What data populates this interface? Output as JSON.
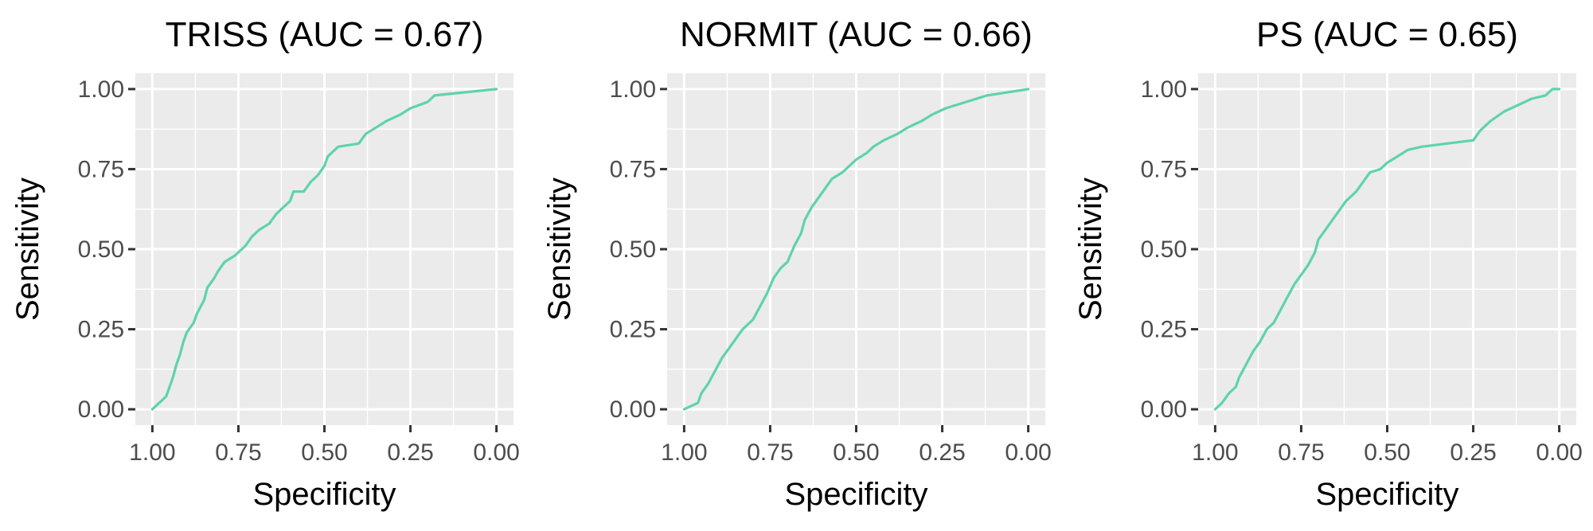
{
  "colors": {
    "line": "#5fd3ab",
    "panel": "#ebebeb",
    "grid": "#ffffff",
    "tick_text": "#4d4d4d"
  },
  "chart_data": [
    {
      "type": "line",
      "title": "TRISS (AUC = 0.67)",
      "xlabel": "Specificity",
      "ylabel": "Sensitivity",
      "xlim": [
        1.0,
        0.0
      ],
      "ylim": [
        0.0,
        1.0
      ],
      "x_reversed": true,
      "grid": true,
      "xticks": [
        "1.00",
        "0.75",
        "0.50",
        "0.25",
        "0.00"
      ],
      "yticks": [
        "0.00",
        "0.25",
        "0.50",
        "0.75",
        "1.00"
      ],
      "points": [
        [
          1.0,
          0.0
        ],
        [
          0.98,
          0.02
        ],
        [
          0.96,
          0.04
        ],
        [
          0.95,
          0.07
        ],
        [
          0.94,
          0.1
        ],
        [
          0.93,
          0.14
        ],
        [
          0.92,
          0.17
        ],
        [
          0.91,
          0.21
        ],
        [
          0.9,
          0.24
        ],
        [
          0.88,
          0.27
        ],
        [
          0.87,
          0.3
        ],
        [
          0.85,
          0.34
        ],
        [
          0.84,
          0.38
        ],
        [
          0.82,
          0.41
        ],
        [
          0.81,
          0.43
        ],
        [
          0.79,
          0.46
        ],
        [
          0.76,
          0.48
        ],
        [
          0.73,
          0.51
        ],
        [
          0.71,
          0.54
        ],
        [
          0.69,
          0.56
        ],
        [
          0.66,
          0.58
        ],
        [
          0.64,
          0.61
        ],
        [
          0.62,
          0.63
        ],
        [
          0.6,
          0.65
        ],
        [
          0.59,
          0.68
        ],
        [
          0.56,
          0.68
        ],
        [
          0.54,
          0.71
        ],
        [
          0.52,
          0.73
        ],
        [
          0.5,
          0.76
        ],
        [
          0.49,
          0.79
        ],
        [
          0.46,
          0.82
        ],
        [
          0.4,
          0.83
        ],
        [
          0.38,
          0.86
        ],
        [
          0.35,
          0.88
        ],
        [
          0.32,
          0.9
        ],
        [
          0.28,
          0.92
        ],
        [
          0.25,
          0.94
        ],
        [
          0.2,
          0.96
        ],
        [
          0.18,
          0.98
        ],
        [
          0.0,
          1.0
        ]
      ]
    },
    {
      "type": "line",
      "title": "NORMIT (AUC = 0.66)",
      "xlabel": "Specificity",
      "ylabel": "Sensitivity",
      "xlim": [
        1.0,
        0.0
      ],
      "ylim": [
        0.0,
        1.0
      ],
      "x_reversed": true,
      "grid": true,
      "xticks": [
        "1.00",
        "0.75",
        "0.50",
        "0.25",
        "0.00"
      ],
      "yticks": [
        "0.00",
        "0.25",
        "0.50",
        "0.75",
        "1.00"
      ],
      "points": [
        [
          1.0,
          0.0
        ],
        [
          0.98,
          0.01
        ],
        [
          0.96,
          0.02
        ],
        [
          0.95,
          0.05
        ],
        [
          0.93,
          0.08
        ],
        [
          0.91,
          0.12
        ],
        [
          0.89,
          0.16
        ],
        [
          0.87,
          0.19
        ],
        [
          0.85,
          0.22
        ],
        [
          0.83,
          0.25
        ],
        [
          0.8,
          0.28
        ],
        [
          0.78,
          0.32
        ],
        [
          0.76,
          0.36
        ],
        [
          0.74,
          0.41
        ],
        [
          0.72,
          0.44
        ],
        [
          0.7,
          0.46
        ],
        [
          0.68,
          0.51
        ],
        [
          0.66,
          0.55
        ],
        [
          0.65,
          0.59
        ],
        [
          0.63,
          0.63
        ],
        [
          0.61,
          0.66
        ],
        [
          0.59,
          0.69
        ],
        [
          0.57,
          0.72
        ],
        [
          0.54,
          0.74
        ],
        [
          0.52,
          0.76
        ],
        [
          0.5,
          0.78
        ],
        [
          0.47,
          0.8
        ],
        [
          0.45,
          0.82
        ],
        [
          0.42,
          0.84
        ],
        [
          0.38,
          0.86
        ],
        [
          0.35,
          0.88
        ],
        [
          0.31,
          0.9
        ],
        [
          0.28,
          0.92
        ],
        [
          0.24,
          0.94
        ],
        [
          0.18,
          0.96
        ],
        [
          0.12,
          0.98
        ],
        [
          0.06,
          0.99
        ],
        [
          0.0,
          1.0
        ]
      ]
    },
    {
      "type": "line",
      "title": "PS (AUC = 0.65)",
      "xlabel": "Specificity",
      "ylabel": "Sensitivity",
      "xlim": [
        1.0,
        0.0
      ],
      "ylim": [
        0.0,
        1.0
      ],
      "x_reversed": true,
      "grid": true,
      "xticks": [
        "1.00",
        "0.75",
        "0.50",
        "0.25",
        "0.00"
      ],
      "yticks": [
        "0.00",
        "0.25",
        "0.50",
        "0.75",
        "1.00"
      ],
      "points": [
        [
          1.0,
          0.0
        ],
        [
          0.98,
          0.02
        ],
        [
          0.96,
          0.05
        ],
        [
          0.94,
          0.07
        ],
        [
          0.93,
          0.1
        ],
        [
          0.91,
          0.14
        ],
        [
          0.89,
          0.18
        ],
        [
          0.87,
          0.21
        ],
        [
          0.85,
          0.25
        ],
        [
          0.83,
          0.27
        ],
        [
          0.81,
          0.31
        ],
        [
          0.79,
          0.35
        ],
        [
          0.77,
          0.39
        ],
        [
          0.75,
          0.42
        ],
        [
          0.73,
          0.45
        ],
        [
          0.71,
          0.49
        ],
        [
          0.7,
          0.53
        ],
        [
          0.68,
          0.56
        ],
        [
          0.66,
          0.59
        ],
        [
          0.64,
          0.62
        ],
        [
          0.62,
          0.65
        ],
        [
          0.59,
          0.68
        ],
        [
          0.57,
          0.71
        ],
        [
          0.55,
          0.74
        ],
        [
          0.52,
          0.75
        ],
        [
          0.5,
          0.77
        ],
        [
          0.47,
          0.79
        ],
        [
          0.44,
          0.81
        ],
        [
          0.4,
          0.82
        ],
        [
          0.25,
          0.84
        ],
        [
          0.23,
          0.87
        ],
        [
          0.2,
          0.9
        ],
        [
          0.16,
          0.93
        ],
        [
          0.12,
          0.95
        ],
        [
          0.08,
          0.97
        ],
        [
          0.04,
          0.98
        ],
        [
          0.02,
          1.0
        ],
        [
          0.0,
          1.0
        ]
      ]
    }
  ]
}
